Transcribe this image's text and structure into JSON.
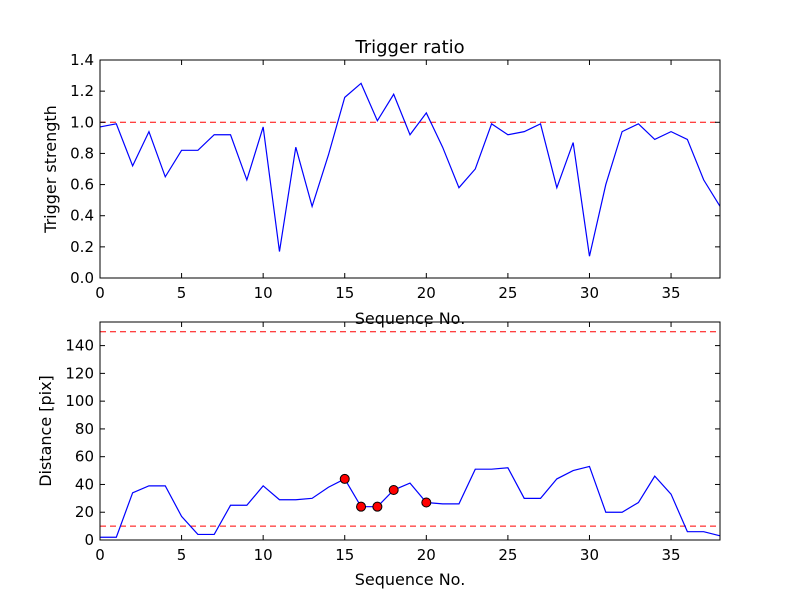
{
  "colors": {
    "series": "#0000ff",
    "threshold": "#ff0000",
    "marker": "#ff0000",
    "axes": "#000000"
  },
  "chart_data": [
    {
      "type": "line",
      "title": "Trigger ratio",
      "xlabel": "Sequence No.",
      "ylabel": "Trigger strength",
      "xlim": [
        0,
        38
      ],
      "ylim": [
        0.0,
        1.4
      ],
      "xticks": [
        "0",
        "5",
        "10",
        "15",
        "20",
        "25",
        "30",
        "35"
      ],
      "yticks": [
        "0.0",
        "0.2",
        "0.4",
        "0.6",
        "0.8",
        "1.0",
        "1.2",
        "1.4"
      ],
      "thresholds": [
        1.0
      ],
      "series": [
        {
          "name": "trigger strength",
          "x": [
            0,
            1,
            2,
            3,
            4,
            5,
            6,
            7,
            8,
            9,
            10,
            11,
            12,
            13,
            14,
            15,
            16,
            17,
            18,
            19,
            20,
            21,
            22,
            23,
            24,
            25,
            26,
            27,
            28,
            29,
            30,
            31,
            32,
            33,
            34,
            35,
            36,
            37,
            38
          ],
          "values": [
            0.97,
            0.99,
            0.72,
            0.94,
            0.65,
            0.82,
            0.82,
            0.92,
            0.92,
            0.63,
            0.97,
            0.17,
            0.84,
            0.46,
            0.79,
            1.16,
            1.25,
            1.01,
            1.18,
            0.92,
            1.06,
            0.84,
            0.58,
            0.7,
            0.99,
            0.92,
            0.94,
            0.99,
            0.58,
            0.87,
            0.14,
            0.6,
            0.94,
            0.99,
            0.89,
            0.94,
            0.89,
            0.63,
            0.46
          ]
        }
      ]
    },
    {
      "type": "line",
      "title": "",
      "xlabel": "Sequence No.",
      "ylabel": "Distance [pix]",
      "xlim": [
        0,
        38
      ],
      "ylim": [
        0,
        157
      ],
      "xticks": [
        "0",
        "5",
        "10",
        "15",
        "20",
        "25",
        "30",
        "35"
      ],
      "yticks": [
        "0",
        "20",
        "40",
        "60",
        "80",
        "100",
        "120",
        "140"
      ],
      "thresholds": [
        10,
        150
      ],
      "series": [
        {
          "name": "distance",
          "x": [
            0,
            1,
            2,
            3,
            4,
            5,
            6,
            7,
            8,
            9,
            10,
            11,
            12,
            13,
            14,
            15,
            16,
            17,
            18,
            19,
            20,
            21,
            22,
            23,
            24,
            25,
            26,
            27,
            28,
            29,
            30,
            31,
            32,
            33,
            34,
            35,
            36,
            37,
            38
          ],
          "values": [
            2,
            2,
            34,
            39,
            39,
            17,
            4,
            4,
            25,
            25,
            39,
            29,
            29,
            30,
            38,
            44,
            24,
            24,
            36,
            41,
            27,
            26,
            26,
            51,
            51,
            52,
            30,
            30,
            44,
            50,
            53,
            20,
            20,
            27,
            46,
            33,
            6,
            6,
            3
          ]
        }
      ],
      "markers": [
        {
          "x": 15,
          "y": 44
        },
        {
          "x": 16,
          "y": 24
        },
        {
          "x": 17,
          "y": 24
        },
        {
          "x": 18,
          "y": 36
        },
        {
          "x": 20,
          "y": 27
        }
      ]
    }
  ]
}
